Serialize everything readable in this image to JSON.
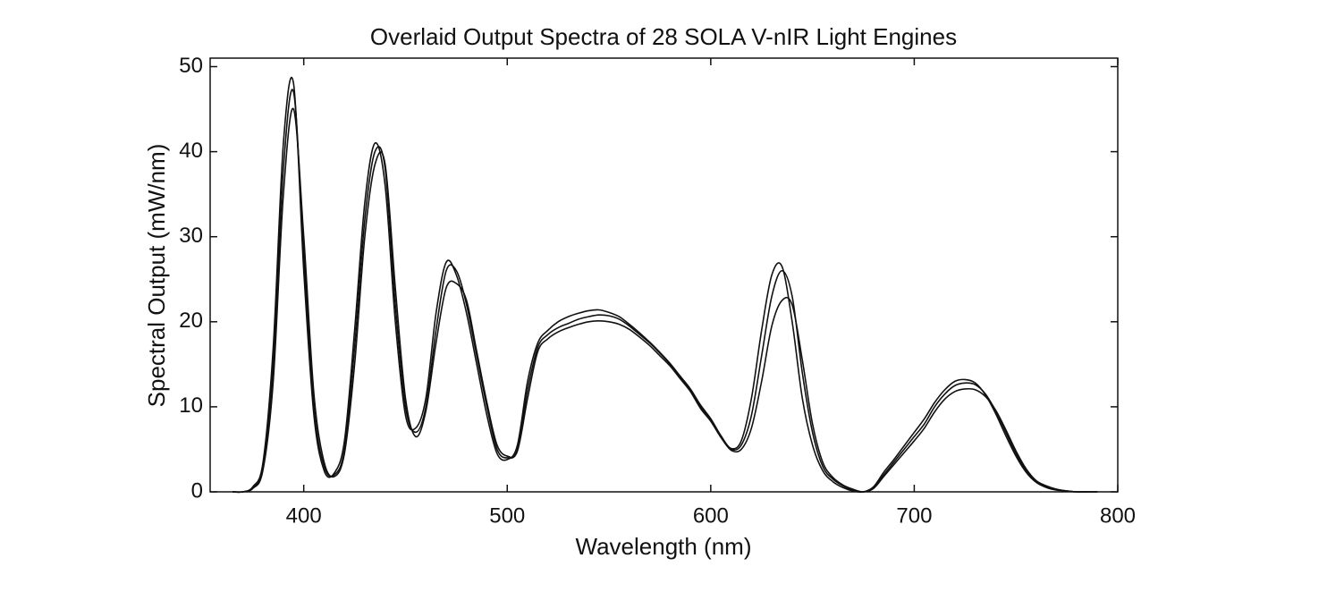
{
  "chart_data": {
    "type": "line",
    "title": "Overlaid Output Spectra of 28 SOLA V-nIR Light Engines",
    "x_label": "Wavelength (nm)",
    "y_label": "Spectral Output (mW/nm)",
    "x": [
      365,
      370,
      375,
      380,
      385,
      390,
      395,
      400,
      405,
      410,
      415,
      420,
      425,
      430,
      435,
      440,
      445,
      450,
      455,
      460,
      465,
      470,
      475,
      480,
      485,
      490,
      495,
      500,
      505,
      510,
      515,
      520,
      525,
      530,
      535,
      540,
      545,
      550,
      555,
      560,
      565,
      570,
      575,
      580,
      585,
      590,
      595,
      600,
      605,
      610,
      615,
      620,
      625,
      630,
      635,
      640,
      645,
      650,
      655,
      660,
      665,
      670,
      675,
      680,
      685,
      690,
      695,
      700,
      705,
      710,
      715,
      720,
      725,
      730,
      735,
      740,
      745,
      750,
      755,
      760,
      765,
      770,
      775,
      780,
      785,
      790
    ],
    "series": [
      {
        "color": "#111111",
        "values": [
          0,
          0,
          0.5,
          3,
          15,
          38,
          47,
          28,
          10,
          3,
          2,
          5,
          17,
          32,
          40,
          38,
          22,
          10,
          7,
          10,
          19,
          26,
          26,
          22,
          16,
          10,
          5,
          4,
          5,
          12,
          17,
          18.5,
          19.3,
          19.8,
          20.3,
          20.6,
          20.8,
          20.7,
          20.3,
          19.5,
          18.5,
          17.5,
          16.3,
          15,
          13.5,
          12,
          10,
          8.5,
          6.5,
          5,
          5.5,
          9,
          16,
          23,
          26,
          23,
          14,
          7,
          3,
          1.5,
          0.7,
          0.2,
          0,
          0.5,
          2,
          3.5,
          5,
          6.5,
          8,
          10,
          11.5,
          12.5,
          12.8,
          12.6,
          11.5,
          9.5,
          7,
          4.5,
          2.5,
          1.2,
          0.6,
          0.3,
          0.1,
          0,
          0,
          0
        ]
      },
      {
        "color": "#111111",
        "values": [
          0,
          0,
          0.6,
          3.5,
          17,
          41,
          48,
          26,
          9,
          2.5,
          2.2,
          6,
          19,
          34,
          41,
          36,
          20,
          9,
          7.5,
          11,
          21,
          27,
          25.5,
          21,
          15,
          9,
          4.5,
          3.8,
          5.5,
          13,
          17.5,
          19,
          20,
          20.6,
          21,
          21.3,
          21.4,
          21.1,
          20.6,
          19.7,
          18.7,
          17.6,
          16.4,
          15.1,
          13.6,
          12.1,
          10.2,
          8.6,
          6.6,
          5.1,
          6,
          11,
          19,
          25.5,
          26.5,
          20,
          11,
          5.5,
          2.5,
          1.2,
          0.5,
          0.1,
          0,
          0.6,
          2.3,
          3.8,
          5.4,
          7,
          8.6,
          10.5,
          12,
          13,
          13.2,
          12.8,
          11.4,
          9.2,
          6.6,
          4.2,
          2.3,
          1.1,
          0.5,
          0.2,
          0.1,
          0,
          0,
          0
        ]
      },
      {
        "color": "#111111",
        "values": [
          0,
          0,
          0.4,
          2.6,
          13,
          35,
          45,
          30,
          11.5,
          3.5,
          1.8,
          4.5,
          15,
          30,
          38.5,
          38.5,
          24,
          11,
          6.5,
          9.5,
          17.5,
          24,
          24.5,
          22.5,
          16.5,
          10.5,
          5.5,
          4.2,
          4.8,
          11,
          16.5,
          18,
          18.8,
          19.3,
          19.7,
          20,
          20.1,
          20,
          19.7,
          19.1,
          18.2,
          17.2,
          16,
          14.8,
          13.3,
          11.8,
          9.8,
          8.3,
          6.4,
          4.9,
          5,
          7.5,
          13,
          19.5,
          22.5,
          22,
          15.5,
          8,
          3.5,
          1.7,
          0.8,
          0.3,
          0,
          0.4,
          1.8,
          3.2,
          4.6,
          6,
          7.5,
          9.4,
          10.9,
          11.8,
          12.1,
          12,
          11.2,
          9.6,
          7.3,
          4.8,
          2.7,
          1.3,
          0.7,
          0.3,
          0.1,
          0,
          0,
          0
        ]
      }
    ],
    "xlim": [
      354,
      800
    ],
    "xticks": [
      400,
      500,
      600,
      700,
      800
    ],
    "ylim": [
      0,
      51
    ],
    "yticks": [
      0,
      10,
      20,
      30,
      40,
      50
    ],
    "grid": false
  }
}
